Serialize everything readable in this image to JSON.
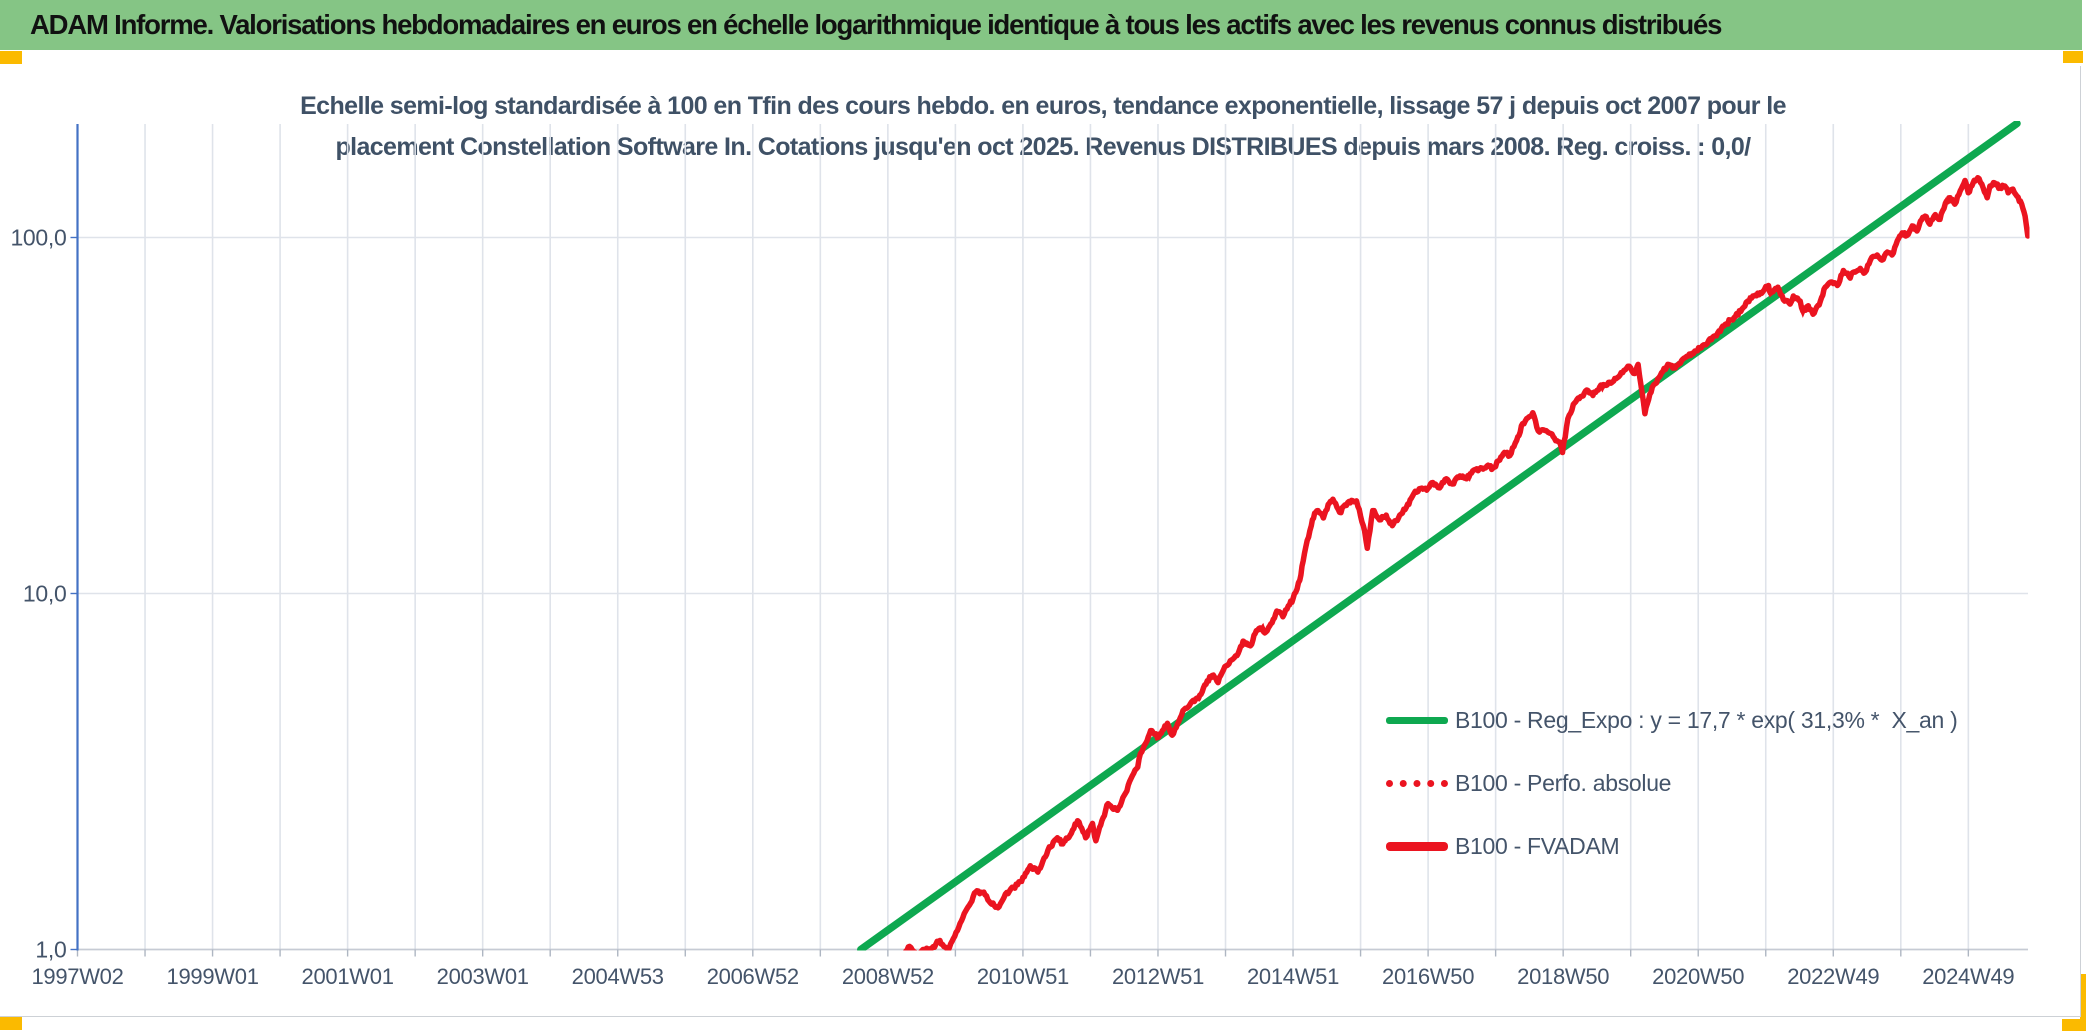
{
  "header": {
    "title": "ADAM Informe. Valorisations hebdomadaires en euros en échelle logarithmique identique à tous les actifs avec les revenus connus distribués"
  },
  "colors": {
    "header_bg": "#85c585",
    "gold_accent": "#fbba00",
    "title_text": "#3f5166",
    "axis_text": "#44546a",
    "gridline": "#dfe3ea",
    "axis_baseline": "#c6cbd4",
    "y_axis_blue": "#4472c4",
    "green_line": "#0ea850",
    "red_line": "#eb1420"
  },
  "chart_data": {
    "type": "line",
    "scale": "semi-log",
    "title_lines": [
      "Echelle semi-log standardisée à 100 en Tfin des cours hebdo. en euros, tendance exponentielle, lissage 57 j depuis oct 2007 pour le",
      "placement Constellation Software In. Cotations jusqu'en oct 2025. Revenus DISTRIBUES depuis mars 2008. Reg. croiss. : 0,0/"
    ],
    "x_axis": {
      "tick_labels": [
        "1997W02",
        "1999W01",
        "2001W01",
        "2003W01",
        "2004W53",
        "2006W52",
        "2008W52",
        "2010W51",
        "2012W51",
        "2014W51",
        "2016W50",
        "2018W50",
        "2020W50",
        "2022W49",
        "2024W49"
      ],
      "label_interval_years": 2,
      "gridline_interval_years": 1,
      "range_years": [
        1997.03,
        2025.95
      ]
    },
    "y_axis": {
      "scale": "log",
      "tick_labels": [
        "1,0",
        "10,0",
        "100,0"
      ],
      "tick_values": [
        1,
        10,
        100
      ],
      "range": [
        1,
        206
      ]
    },
    "legend": [
      {
        "label": "B100 - Reg_Expo : y = 17,7 * exp( 31,3% *  X_an )",
        "color": "#0ea850",
        "style": "solid"
      },
      {
        "label": "B100 - Perfo. absolue",
        "color": "#eb1420",
        "style": "dotted"
      },
      {
        "label": "B100 - FVADAM",
        "color": "#eb1420",
        "style": "solid"
      }
    ],
    "series": [
      {
        "name": "B100 - Reg_Expo",
        "type": "regression_exponential",
        "equation": "y = 17,7 * exp( 31,3% * X_an )",
        "points": [
          [
            2008.63,
            1.0
          ],
          [
            2025.75,
            209.0
          ]
        ]
      },
      {
        "name": "B100 - Perfo. absolue",
        "type": "line",
        "coincides_with": "B100 - FVADAM"
      },
      {
        "name": "B100 - FVADAM",
        "type": "line",
        "points": [
          [
            2008.2,
            0.74
          ],
          [
            2008.5,
            0.82
          ],
          [
            2008.75,
            0.7
          ],
          [
            2009.0,
            0.8
          ],
          [
            2009.15,
            0.9
          ],
          [
            2009.28,
            0.97
          ],
          [
            2009.35,
            1.02
          ],
          [
            2009.45,
            0.96
          ],
          [
            2009.55,
            1.0
          ],
          [
            2009.66,
            1.0
          ],
          [
            2009.8,
            1.06
          ],
          [
            2009.92,
            0.99
          ],
          [
            2010.06,
            1.13
          ],
          [
            2010.2,
            1.3
          ],
          [
            2010.33,
            1.45
          ],
          [
            2010.45,
            1.45
          ],
          [
            2010.55,
            1.35
          ],
          [
            2010.66,
            1.31
          ],
          [
            2010.75,
            1.4
          ],
          [
            2010.85,
            1.48
          ],
          [
            2010.95,
            1.52
          ],
          [
            2011.05,
            1.6
          ],
          [
            2011.14,
            1.72
          ],
          [
            2011.25,
            1.65
          ],
          [
            2011.4,
            1.9
          ],
          [
            2011.54,
            2.06
          ],
          [
            2011.62,
            1.98
          ],
          [
            2011.69,
            2.05
          ],
          [
            2011.84,
            2.3
          ],
          [
            2011.96,
            2.06
          ],
          [
            2012.06,
            2.26
          ],
          [
            2012.11,
            2.02
          ],
          [
            2012.2,
            2.3
          ],
          [
            2012.29,
            2.57
          ],
          [
            2012.43,
            2.46
          ],
          [
            2012.55,
            2.75
          ],
          [
            2012.63,
            3.02
          ],
          [
            2012.73,
            3.25
          ],
          [
            2012.77,
            3.55
          ],
          [
            2012.85,
            3.8
          ],
          [
            2012.92,
            4.12
          ],
          [
            2013.04,
            3.95
          ],
          [
            2013.17,
            4.32
          ],
          [
            2013.24,
            4.0
          ],
          [
            2013.4,
            4.69
          ],
          [
            2013.51,
            4.9
          ],
          [
            2013.63,
            5.07
          ],
          [
            2013.76,
            5.69
          ],
          [
            2013.85,
            5.9
          ],
          [
            2013.92,
            5.62
          ],
          [
            2014.0,
            6.1
          ],
          [
            2014.1,
            6.47
          ],
          [
            2014.2,
            6.69
          ],
          [
            2014.29,
            7.35
          ],
          [
            2014.4,
            7.13
          ],
          [
            2014.47,
            7.72
          ],
          [
            2014.54,
            8.0
          ],
          [
            2014.63,
            7.8
          ],
          [
            2014.72,
            8.28
          ],
          [
            2014.79,
            8.93
          ],
          [
            2014.88,
            8.6
          ],
          [
            2014.96,
            9.23
          ],
          [
            2015.03,
            9.66
          ],
          [
            2015.09,
            10.3
          ],
          [
            2015.13,
            10.9
          ],
          [
            2015.18,
            12.35
          ],
          [
            2015.24,
            14.1
          ],
          [
            2015.3,
            15.5
          ],
          [
            2015.35,
            16.8
          ],
          [
            2015.4,
            17.1
          ],
          [
            2015.48,
            16.3
          ],
          [
            2015.55,
            17.8
          ],
          [
            2015.62,
            18.4
          ],
          [
            2015.72,
            16.9
          ],
          [
            2015.84,
            18.0
          ],
          [
            2015.97,
            18.2
          ],
          [
            2016.09,
            15.0
          ],
          [
            2016.13,
            13.4
          ],
          [
            2016.21,
            17.1
          ],
          [
            2016.31,
            16.1
          ],
          [
            2016.41,
            16.6
          ],
          [
            2016.5,
            15.5
          ],
          [
            2016.61,
            16.6
          ],
          [
            2016.71,
            17.5
          ],
          [
            2016.8,
            18.8
          ],
          [
            2016.9,
            19.7
          ],
          [
            2017.01,
            19.5
          ],
          [
            2017.1,
            20.5
          ],
          [
            2017.2,
            19.8
          ],
          [
            2017.3,
            21.0
          ],
          [
            2017.39,
            20.3
          ],
          [
            2017.5,
            21.4
          ],
          [
            2017.6,
            21.0
          ],
          [
            2017.69,
            22.1
          ],
          [
            2017.79,
            22.4
          ],
          [
            2017.9,
            22.8
          ],
          [
            2017.99,
            22.5
          ],
          [
            2018.09,
            23.7
          ],
          [
            2018.16,
            24.9
          ],
          [
            2018.24,
            24.4
          ],
          [
            2018.34,
            26.9
          ],
          [
            2018.43,
            30.0
          ],
          [
            2018.49,
            31.0
          ],
          [
            2018.58,
            32.2
          ],
          [
            2018.64,
            29.3
          ],
          [
            2018.68,
            28.4
          ],
          [
            2018.76,
            28.7
          ],
          [
            2018.83,
            28.2
          ],
          [
            2018.9,
            27.3
          ],
          [
            2018.98,
            26.6
          ],
          [
            2019.02,
            24.9
          ],
          [
            2019.1,
            31.0
          ],
          [
            2019.2,
            34.3
          ],
          [
            2019.27,
            35.3
          ],
          [
            2019.38,
            37.3
          ],
          [
            2019.47,
            36.0
          ],
          [
            2019.57,
            38.0
          ],
          [
            2019.72,
            39.2
          ],
          [
            2019.87,
            41.0
          ],
          [
            2019.99,
            43.5
          ],
          [
            2020.09,
            41.5
          ],
          [
            2020.14,
            44.0
          ],
          [
            2020.24,
            32.0
          ],
          [
            2020.35,
            38.0
          ],
          [
            2020.47,
            41.0
          ],
          [
            2020.58,
            44.0
          ],
          [
            2020.69,
            43.0
          ],
          [
            2020.84,
            46.0
          ],
          [
            2020.98,
            48.0
          ],
          [
            2021.13,
            50.0
          ],
          [
            2021.28,
            53.0
          ],
          [
            2021.43,
            57.0
          ],
          [
            2021.58,
            60.0
          ],
          [
            2021.68,
            63.0
          ],
          [
            2021.8,
            67.6
          ],
          [
            2021.95,
            70.0
          ],
          [
            2022.07,
            73.3
          ],
          [
            2022.1,
            69.7
          ],
          [
            2022.21,
            72.5
          ],
          [
            2022.29,
            66.9
          ],
          [
            2022.39,
            65.0
          ],
          [
            2022.44,
            68.5
          ],
          [
            2022.54,
            66.3
          ],
          [
            2022.58,
            62.1
          ],
          [
            2022.66,
            64.3
          ],
          [
            2022.73,
            60.9
          ],
          [
            2022.84,
            66.3
          ],
          [
            2022.91,
            72.5
          ],
          [
            2023.01,
            75.0
          ],
          [
            2023.09,
            73.3
          ],
          [
            2023.18,
            80.8
          ],
          [
            2023.28,
            76.9
          ],
          [
            2023.32,
            79.8
          ],
          [
            2023.43,
            81.9
          ],
          [
            2023.5,
            79.8
          ],
          [
            2023.58,
            86.4
          ],
          [
            2023.68,
            89.3
          ],
          [
            2023.75,
            86.4
          ],
          [
            2023.83,
            91.0
          ],
          [
            2023.9,
            89.3
          ],
          [
            2023.98,
            98.1
          ],
          [
            2024.05,
            103.0
          ],
          [
            2024.12,
            101.3
          ],
          [
            2024.2,
            107.7
          ],
          [
            2024.27,
            104.3
          ],
          [
            2024.32,
            111.1
          ],
          [
            2024.39,
            114.8
          ],
          [
            2024.46,
            109.0
          ],
          [
            2024.54,
            116.0
          ],
          [
            2024.61,
            112.4
          ],
          [
            2024.69,
            124.8
          ],
          [
            2024.76,
            129.3
          ],
          [
            2024.83,
            124.0
          ],
          [
            2024.91,
            135.2
          ],
          [
            2024.98,
            144.6
          ],
          [
            2025.03,
            133.5
          ],
          [
            2025.1,
            142.4
          ],
          [
            2025.17,
            147.2
          ],
          [
            2025.25,
            137.7
          ],
          [
            2025.31,
            129.3
          ],
          [
            2025.35,
            139.5
          ],
          [
            2025.42,
            142.4
          ],
          [
            2025.5,
            137.7
          ],
          [
            2025.57,
            139.5
          ],
          [
            2025.62,
            133.5
          ],
          [
            2025.69,
            136.8
          ],
          [
            2025.75,
            130.6
          ],
          [
            2025.82,
            124.0
          ],
          [
            2025.87,
            114.8
          ],
          [
            2025.91,
            101.0
          ]
        ]
      }
    ]
  }
}
